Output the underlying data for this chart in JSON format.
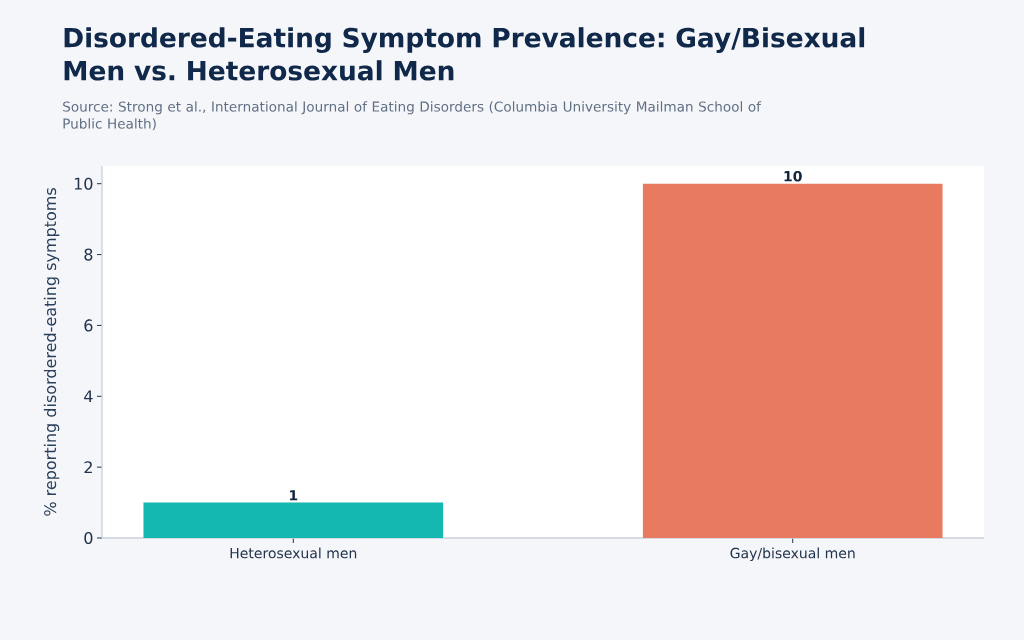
{
  "chart_data": {
    "type": "bar",
    "title": "Disordered-Eating Symptom Prevalence: Gay/Bisexual Men vs. Heterosexual Men",
    "annotations": [
      "Source: Strong et al., International Journal of Eating Disorders (Columbia University Mailman School of Public Health)"
    ],
    "ylabel": "% reporting disordered-eating symptoms",
    "categories": [
      "Heterosexual men",
      "Gay/bisexual men"
    ],
    "values": [
      1,
      10
    ],
    "colors": [
      "#14b8b0",
      "#e87b5f"
    ],
    "ylim": [
      0,
      10.5
    ],
    "yticks": [
      0,
      2,
      4,
      6,
      8,
      10
    ],
    "data_labels": true,
    "grid": false
  }
}
